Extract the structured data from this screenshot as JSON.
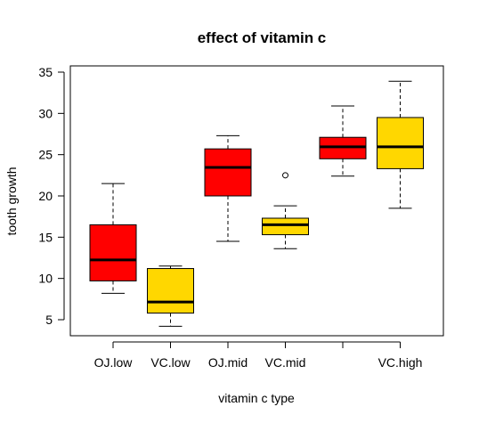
{
  "chart_data": {
    "type": "box",
    "title": "effect of vitamin c",
    "xlabel": "vitamin c type",
    "ylabel": "tooth growth",
    "ylim": [
      4,
      35.5
    ],
    "yticks": [
      5,
      10,
      15,
      20,
      25,
      30,
      35
    ],
    "grid": false,
    "legend": "none",
    "categories": [
      "OJ.low",
      "VC.low",
      "OJ.mid",
      "VC.mid",
      "",
      "VC.high"
    ],
    "boxes": [
      {
        "label": "OJ.low",
        "color": "#ff0000",
        "min": 8.2,
        "q1": 9.7,
        "median": 12.25,
        "q3": 16.5,
        "max": 21.5,
        "outliers": []
      },
      {
        "label": "VC.low",
        "color": "#ffd700",
        "min": 4.2,
        "q1": 5.8,
        "median": 7.15,
        "q3": 11.2,
        "max": 11.5,
        "outliers": []
      },
      {
        "label": "OJ.mid",
        "color": "#ff0000",
        "min": 14.5,
        "q1": 20.0,
        "median": 23.45,
        "q3": 25.7,
        "max": 27.3,
        "outliers": []
      },
      {
        "label": "VC.mid",
        "color": "#ffd700",
        "min": 13.6,
        "q1": 15.3,
        "median": 16.5,
        "q3": 17.3,
        "max": 18.8,
        "outliers": [
          22.5
        ]
      },
      {
        "label": "",
        "color": "#ff0000",
        "min": 22.4,
        "q1": 24.5,
        "median": 25.95,
        "q3": 27.1,
        "max": 30.9,
        "outliers": []
      },
      {
        "label": "VC.high",
        "color": "#ffd700",
        "min": 18.5,
        "q1": 23.3,
        "median": 25.95,
        "q3": 29.5,
        "max": 33.9,
        "outliers": []
      }
    ]
  }
}
